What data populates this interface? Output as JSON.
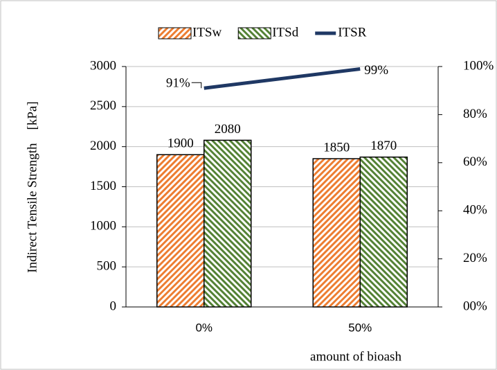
{
  "chart_data": {
    "type": "bar",
    "categories": [
      "0%",
      "50%"
    ],
    "series": [
      {
        "name": "ITSw",
        "color": "#ed7d31",
        "values": [
          1900,
          1850
        ]
      },
      {
        "name": "ITSd",
        "color": "#548235",
        "values": [
          2080,
          1870
        ]
      },
      {
        "name": "ITSR",
        "color": "#1f3864",
        "type": "line",
        "axis": "y2",
        "values": [
          91,
          99
        ],
        "value_labels": [
          "91%",
          "99%"
        ]
      }
    ],
    "ylabel": "Indirect Tensile Strength    [kPa]",
    "xlabel": "amount of bioash",
    "ylim": [
      0,
      3000
    ],
    "yticks": [
      0,
      500,
      1000,
      1500,
      2000,
      2500,
      3000
    ],
    "y2lim": [
      0,
      100
    ],
    "y2ticks": [
      {
        "value": 0,
        "label": "00%"
      },
      {
        "value": 20,
        "label": "20%"
      },
      {
        "value": 40,
        "label": "40%"
      },
      {
        "value": 60,
        "label": "60%"
      },
      {
        "value": 80,
        "label": "80%"
      },
      {
        "value": 100,
        "label": "100%"
      }
    ],
    "grid": true,
    "legend": "top"
  }
}
